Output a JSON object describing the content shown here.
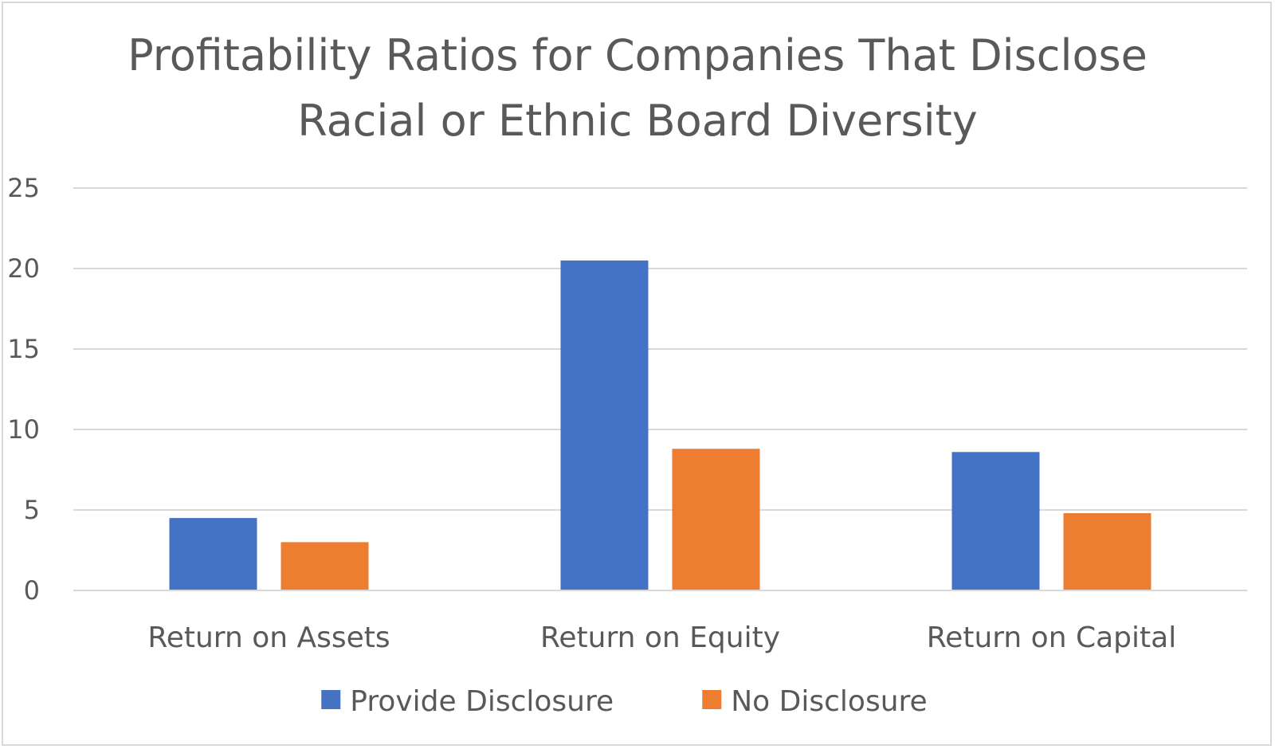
{
  "chart_data": {
    "type": "bar",
    "title_lines": [
      "Profitability Ratios for Companies That Disclose",
      "Racial or Ethnic Board Diversity"
    ],
    "categories": [
      "Return on Assets",
      "Return on Equity",
      "Return on Capital"
    ],
    "series": [
      {
        "name": "Provide Disclosure",
        "color": "#4472C4",
        "values": [
          4.5,
          20.5,
          8.6
        ]
      },
      {
        "name": "No Disclosure",
        "color": "#ED7D31",
        "values": [
          3.0,
          8.8,
          4.8
        ]
      }
    ],
    "ylim": [
      0,
      25
    ],
    "yticks": [
      "0",
      "5",
      "10",
      "15",
      "20",
      "25"
    ],
    "grid": true,
    "gridline_color": "#d9d9d9",
    "legend_position": "bottom"
  }
}
